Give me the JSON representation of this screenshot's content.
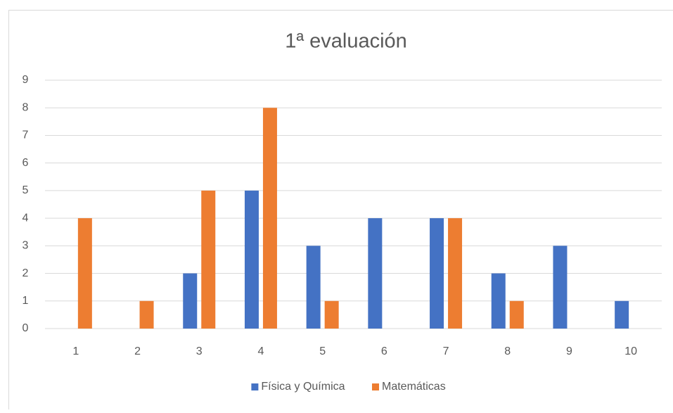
{
  "chart_data": {
    "type": "bar",
    "title": "1ª evaluación",
    "categories": [
      "1",
      "2",
      "3",
      "4",
      "5",
      "6",
      "7",
      "8",
      "9",
      "10"
    ],
    "series": [
      {
        "name": "Física y Química",
        "color": "#4472c4",
        "values": [
          0,
          0,
          2,
          5,
          3,
          4,
          4,
          2,
          3,
          1
        ]
      },
      {
        "name": "Matemáticas",
        "color": "#ed7d31",
        "values": [
          4,
          1,
          5,
          8,
          1,
          0,
          4,
          1,
          0,
          0
        ]
      }
    ],
    "ylim": [
      0,
      9
    ],
    "yticks": [
      0,
      1,
      2,
      3,
      4,
      5,
      6,
      7,
      8,
      9
    ],
    "grid": true,
    "legend": "bottom"
  }
}
